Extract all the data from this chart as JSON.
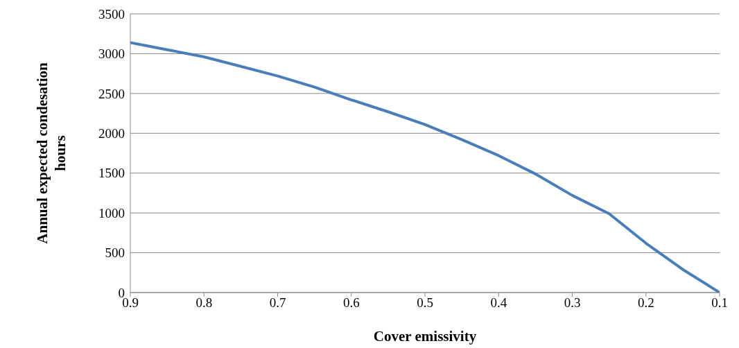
{
  "chart_data": {
    "type": "line",
    "xlabel": "Cover  emissivity",
    "ylabel": "Annual expected condesation hours",
    "x": [
      0.9,
      0.85,
      0.8,
      0.75,
      0.7,
      0.65,
      0.6,
      0.55,
      0.5,
      0.45,
      0.4,
      0.35,
      0.3,
      0.25,
      0.2,
      0.15,
      0.1
    ],
    "series": [
      {
        "color": "#4a7ebb",
        "values": [
          3140,
          3050,
          2960,
          2840,
          2720,
          2580,
          2420,
          2270,
          2110,
          1920,
          1720,
          1490,
          1220,
          990,
          620,
          290,
          0
        ]
      }
    ],
    "xlim": [
      0.9,
      0.1
    ],
    "xticks": [
      0.9,
      0.8,
      0.7,
      0.6,
      0.5,
      0.4,
      0.3,
      0.2,
      0.1
    ],
    "ylim": [
      0,
      3500
    ],
    "yticks": [
      0,
      500,
      1000,
      1500,
      2000,
      2500,
      3000,
      3500
    ],
    "grid": "y",
    "marker": "none",
    "line_style": "solid"
  }
}
